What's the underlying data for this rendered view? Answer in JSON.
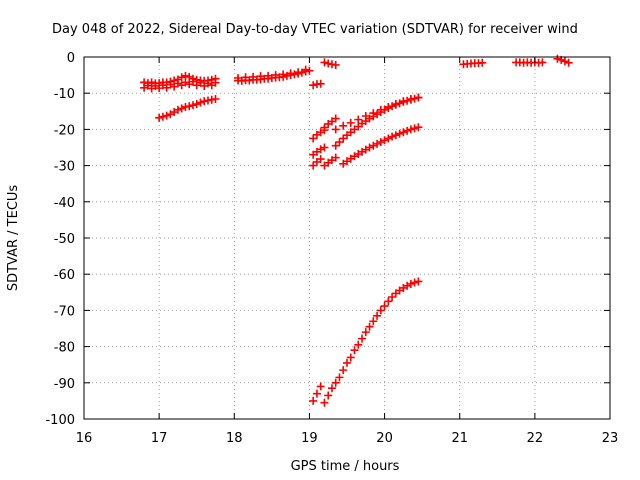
{
  "chart_data": {
    "type": "scatter",
    "title": "Day 048 of 2022, Sidereal Day-to-day VTEC variation (SDTVAR) for receiver wind",
    "xlabel": "GPS time / hours",
    "ylabel": "SDTVAR / TECUs",
    "xlim": [
      16,
      23
    ],
    "ylim": [
      -100,
      0
    ],
    "xticks": [
      16,
      17,
      18,
      19,
      20,
      21,
      22,
      23
    ],
    "yticks": [
      0,
      -10,
      -20,
      -30,
      -40,
      -50,
      -60,
      -70,
      -80,
      -90,
      -100
    ],
    "grid": true,
    "legend": "none",
    "marker": "plus",
    "marker_color": "#ff0000",
    "series": [
      {
        "x": [
          16.8,
          16.85,
          16.9,
          16.95,
          17.0,
          17.05,
          17.1,
          17.15,
          17.2,
          17.25,
          17.3,
          17.35,
          17.4,
          17.45,
          17.5,
          17.55,
          17.6,
          17.65,
          17.7,
          17.75,
          16.8,
          16.9,
          17.0,
          17.1,
          17.2,
          17.3,
          17.4,
          17.5,
          17.6,
          17.7,
          16.85,
          16.95,
          17.05,
          17.15,
          17.25,
          17.35,
          17.45,
          17.55,
          17.65,
          17.75
        ],
        "y": [
          -7.0,
          -7.2,
          -7.0,
          -7.3,
          -7.2,
          -7.0,
          -7.0,
          -6.8,
          -6.5,
          -6.2,
          -5.6,
          -5.2,
          -5.5,
          -6.0,
          -6.3,
          -6.5,
          -6.6,
          -6.5,
          -6.3,
          -6.0,
          -8.5,
          -8.7,
          -8.6,
          -8.5,
          -8.2,
          -7.8,
          -7.5,
          -7.8,
          -8.0,
          -7.8,
          -7.9,
          -8.0,
          -7.8,
          -7.6,
          -7.3,
          -7.0,
          -6.8,
          -7.1,
          -7.3,
          -7.1
        ]
      },
      {
        "x": [
          17.0,
          17.05,
          17.1,
          17.15,
          17.2,
          17.25,
          17.3,
          17.35,
          17.4,
          17.45,
          17.5,
          17.55,
          17.6,
          17.65,
          17.7,
          17.75
        ],
        "y": [
          -16.8,
          -16.5,
          -16.2,
          -15.8,
          -15.2,
          -14.6,
          -14.2,
          -13.8,
          -13.6,
          -13.3,
          -13.0,
          -12.6,
          -12.2,
          -12.0,
          -11.8,
          -11.6
        ]
      },
      {
        "x": [
          18.05,
          18.1,
          18.15,
          18.2,
          18.25,
          18.3,
          18.35,
          18.4,
          18.45,
          18.5,
          18.55,
          18.6,
          18.65,
          18.7,
          18.75,
          18.8,
          18.85,
          18.9,
          18.95,
          19.0,
          18.05,
          18.15,
          18.25,
          18.35,
          18.45,
          18.55,
          18.65,
          18.75,
          18.85,
          18.95
        ],
        "y": [
          -6.5,
          -6.6,
          -6.4,
          -6.5,
          -6.3,
          -6.3,
          -6.2,
          -6.0,
          -6.0,
          -5.8,
          -5.7,
          -5.6,
          -5.5,
          -5.2,
          -5.0,
          -4.8,
          -4.6,
          -4.3,
          -4.0,
          -3.8,
          -5.8,
          -5.6,
          -5.5,
          -5.3,
          -5.2,
          -5.0,
          -4.8,
          -4.5,
          -4.2,
          -3.5
        ]
      },
      {
        "x": [
          19.05,
          19.1,
          19.15
        ],
        "y": [
          -7.8,
          -7.5,
          -7.4
        ]
      },
      {
        "x": [
          19.2,
          19.25,
          19.3,
          19.35
        ],
        "y": [
          -1.5,
          -1.8,
          -2.0,
          -2.2
        ]
      },
      {
        "x": [
          19.05,
          19.1,
          19.15,
          19.2
        ],
        "y": [
          -22.5,
          -21.5,
          -20.8,
          -20.2
        ]
      },
      {
        "x": [
          19.2,
          19.25,
          19.3,
          19.35
        ],
        "y": [
          -19.5,
          -18.5,
          -17.8,
          -17.0
        ]
      },
      {
        "x": [
          19.35,
          19.45,
          19.55,
          19.65,
          19.75,
          19.85,
          19.95,
          20.05,
          20.15,
          20.25,
          20.35,
          20.45
        ],
        "y": [
          -20.0,
          -19.0,
          -18.2,
          -17.3,
          -16.3,
          -15.5,
          -14.6,
          -13.8,
          -13.0,
          -12.2,
          -11.6,
          -11.2
        ]
      },
      {
        "x": [
          19.05,
          19.1,
          19.15,
          19.2
        ],
        "y": [
          -27.0,
          -26.2,
          -25.5,
          -25.0
        ]
      },
      {
        "x": [
          19.05,
          19.1,
          19.15
        ],
        "y": [
          -30.0,
          -29.0,
          -28.2
        ]
      },
      {
        "x": [
          19.2,
          19.25,
          19.3,
          19.35
        ],
        "y": [
          -30.0,
          -29.2,
          -28.5,
          -27.8
        ]
      },
      {
        "x": [
          19.35,
          19.4,
          19.45,
          19.5,
          19.55,
          19.6,
          19.65,
          19.7,
          19.75,
          19.8,
          19.85,
          19.9,
          19.95,
          20.0,
          20.05,
          20.1,
          20.15,
          20.2,
          20.25,
          20.3,
          20.35,
          20.4,
          20.45
        ],
        "y": [
          -24.5,
          -23.5,
          -22.5,
          -21.6,
          -20.8,
          -20.0,
          -19.2,
          -18.4,
          -17.7,
          -17.0,
          -16.4,
          -15.8,
          -15.2,
          -14.6,
          -14.1,
          -13.6,
          -13.2,
          -12.8,
          -12.4,
          -12.1,
          -11.8,
          -11.5,
          -11.2
        ]
      },
      {
        "x": [
          19.45,
          19.5,
          19.55,
          19.6,
          19.65,
          19.7,
          19.75,
          19.8,
          19.85,
          19.9,
          19.95,
          20.0,
          20.05,
          20.1,
          20.15,
          20.2,
          20.25,
          20.3,
          20.35,
          20.4,
          20.45
        ],
        "y": [
          -29.5,
          -28.8,
          -28.1,
          -27.4,
          -26.8,
          -26.2,
          -25.6,
          -25.0,
          -24.5,
          -24.0,
          -23.5,
          -23.0,
          -22.5,
          -22.0,
          -21.6,
          -21.2,
          -20.8,
          -20.4,
          -20.0,
          -19.7,
          -19.4
        ]
      },
      {
        "x": [
          19.05,
          19.1,
          19.15
        ],
        "y": [
          -95.0,
          -93.0,
          -91.0
        ]
      },
      {
        "x": [
          19.2,
          19.25,
          19.3,
          19.35,
          19.4,
          19.45,
          19.5,
          19.55,
          19.6,
          19.65,
          19.7,
          19.75,
          19.8,
          19.85,
          19.9,
          19.95,
          20.0,
          20.05,
          20.1,
          20.15,
          20.2,
          20.25,
          20.3,
          20.35,
          20.4,
          20.45
        ],
        "y": [
          -95.5,
          -93.5,
          -91.5,
          -90.0,
          -88.5,
          -86.5,
          -84.5,
          -83.0,
          -81.0,
          -79.5,
          -77.8,
          -76.0,
          -74.5,
          -73.0,
          -71.5,
          -70.0,
          -68.8,
          -67.5,
          -66.3,
          -65.3,
          -64.5,
          -63.8,
          -63.2,
          -62.7,
          -62.3,
          -62.0
        ]
      },
      {
        "x": [
          21.05,
          21.1,
          21.15,
          21.2,
          21.25,
          21.3
        ],
        "y": [
          -2.0,
          -1.9,
          -1.8,
          -1.7,
          -1.7,
          -1.6
        ]
      },
      {
        "x": [
          21.75,
          21.8,
          21.85,
          21.9,
          21.95,
          22.0,
          22.05,
          22.1
        ],
        "y": [
          -1.5,
          -1.5,
          -1.6,
          -1.5,
          -1.6,
          -1.5,
          -1.6,
          -1.5
        ]
      },
      {
        "x": [
          22.3,
          22.35,
          22.4,
          22.45
        ],
        "y": [
          -0.5,
          -0.8,
          -1.2,
          -1.6
        ]
      }
    ]
  }
}
